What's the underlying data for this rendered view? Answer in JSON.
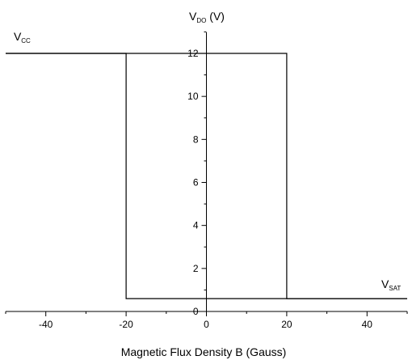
{
  "chart_data": {
    "type": "line",
    "title": "",
    "xlabel": "Magnetic Flux Density B (Gauss)",
    "ylabel": {
      "main": "V",
      "sub": "DO",
      "unit": " (V)"
    },
    "xlim": [
      -50,
      50
    ],
    "ylim": [
      0,
      13
    ],
    "x_ticks": [
      -40,
      -20,
      0,
      20,
      40
    ],
    "y_ticks": [
      0,
      2,
      4,
      6,
      8,
      10,
      12
    ],
    "x_tick_labels": [
      "-40",
      "-20",
      "0",
      "20",
      "40"
    ],
    "y_tick_labels": [
      "0",
      "2",
      "4",
      "6",
      "8",
      "10",
      "12"
    ],
    "grid": false,
    "series": [
      {
        "x": [
          -50,
          -20,
          -20,
          50
        ],
        "y": [
          12,
          12,
          0.6,
          0.6
        ]
      },
      {
        "x": [
          -50,
          20,
          20,
          50
        ],
        "y": [
          12,
          12,
          0.6,
          0.6
        ]
      }
    ],
    "annotations": [
      {
        "main": "V",
        "sub": "CC",
        "x": -48,
        "y": 12.6
      },
      {
        "main": "V",
        "sub": "SAT",
        "x": 46,
        "y": 1.1
      }
    ]
  }
}
